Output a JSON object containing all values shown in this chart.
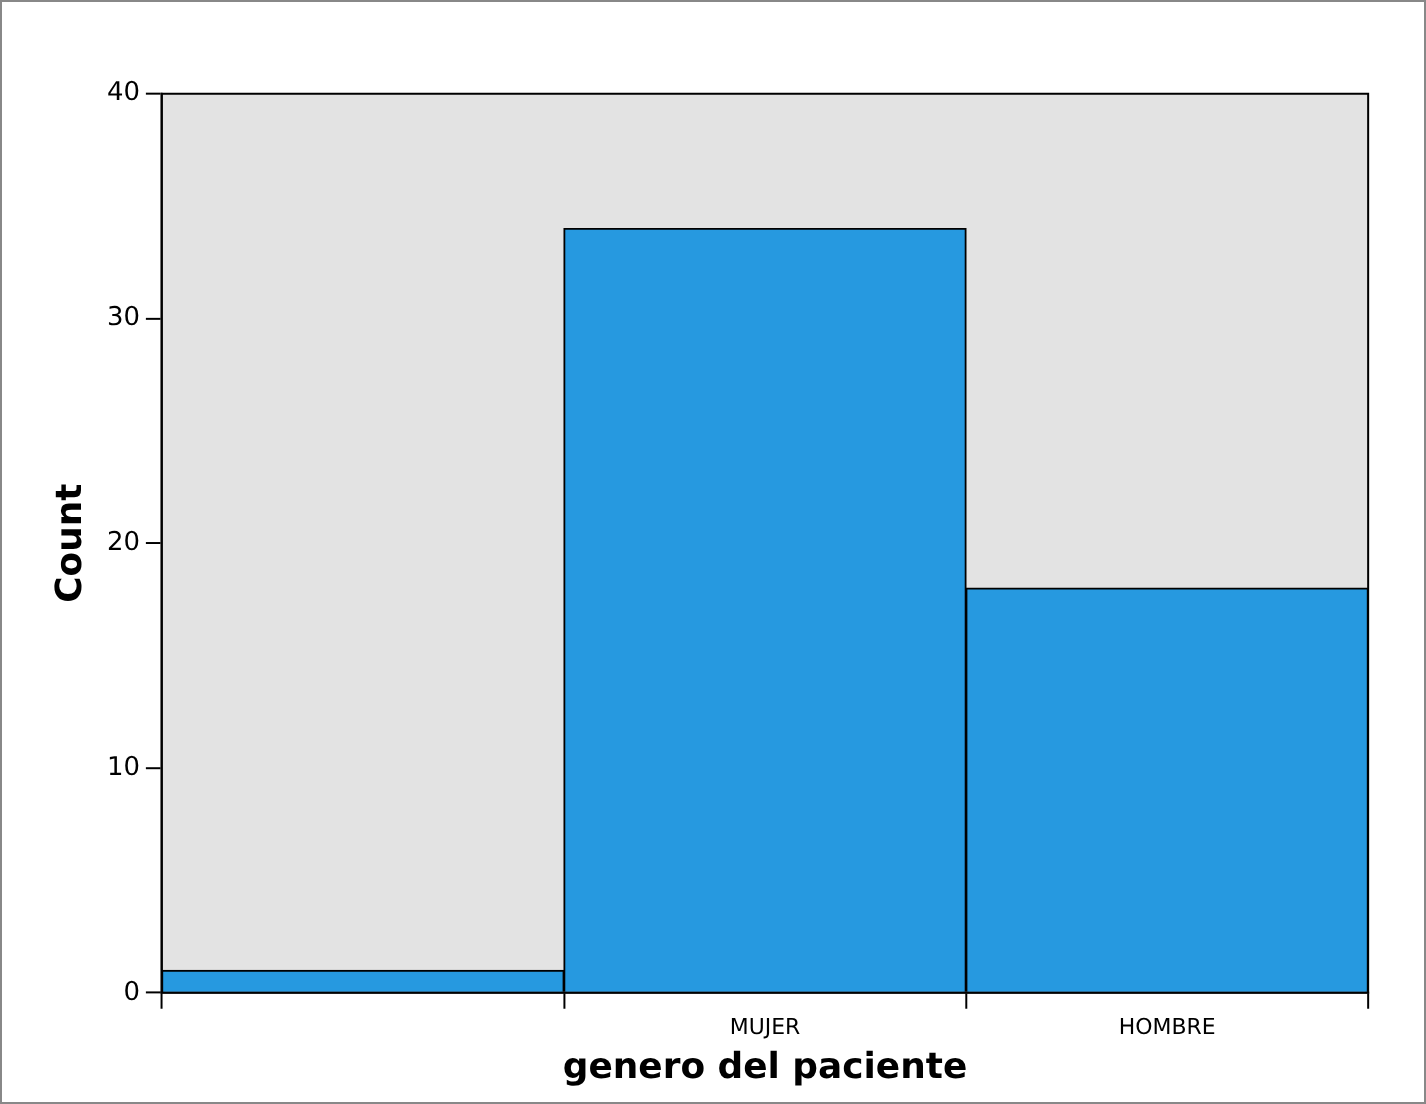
{
  "chart_data": {
    "type": "bar",
    "xlabel": "genero del paciente",
    "ylabel": "Count",
    "categories": [
      null,
      "MUJER",
      "HOMBRE"
    ],
    "values": [
      1,
      34,
      18
    ],
    "color": "#2699e0",
    "ylim": [
      0,
      40
    ],
    "yticks": [
      0,
      10,
      20,
      30,
      40
    ],
    "grid": false,
    "legend": false
  }
}
